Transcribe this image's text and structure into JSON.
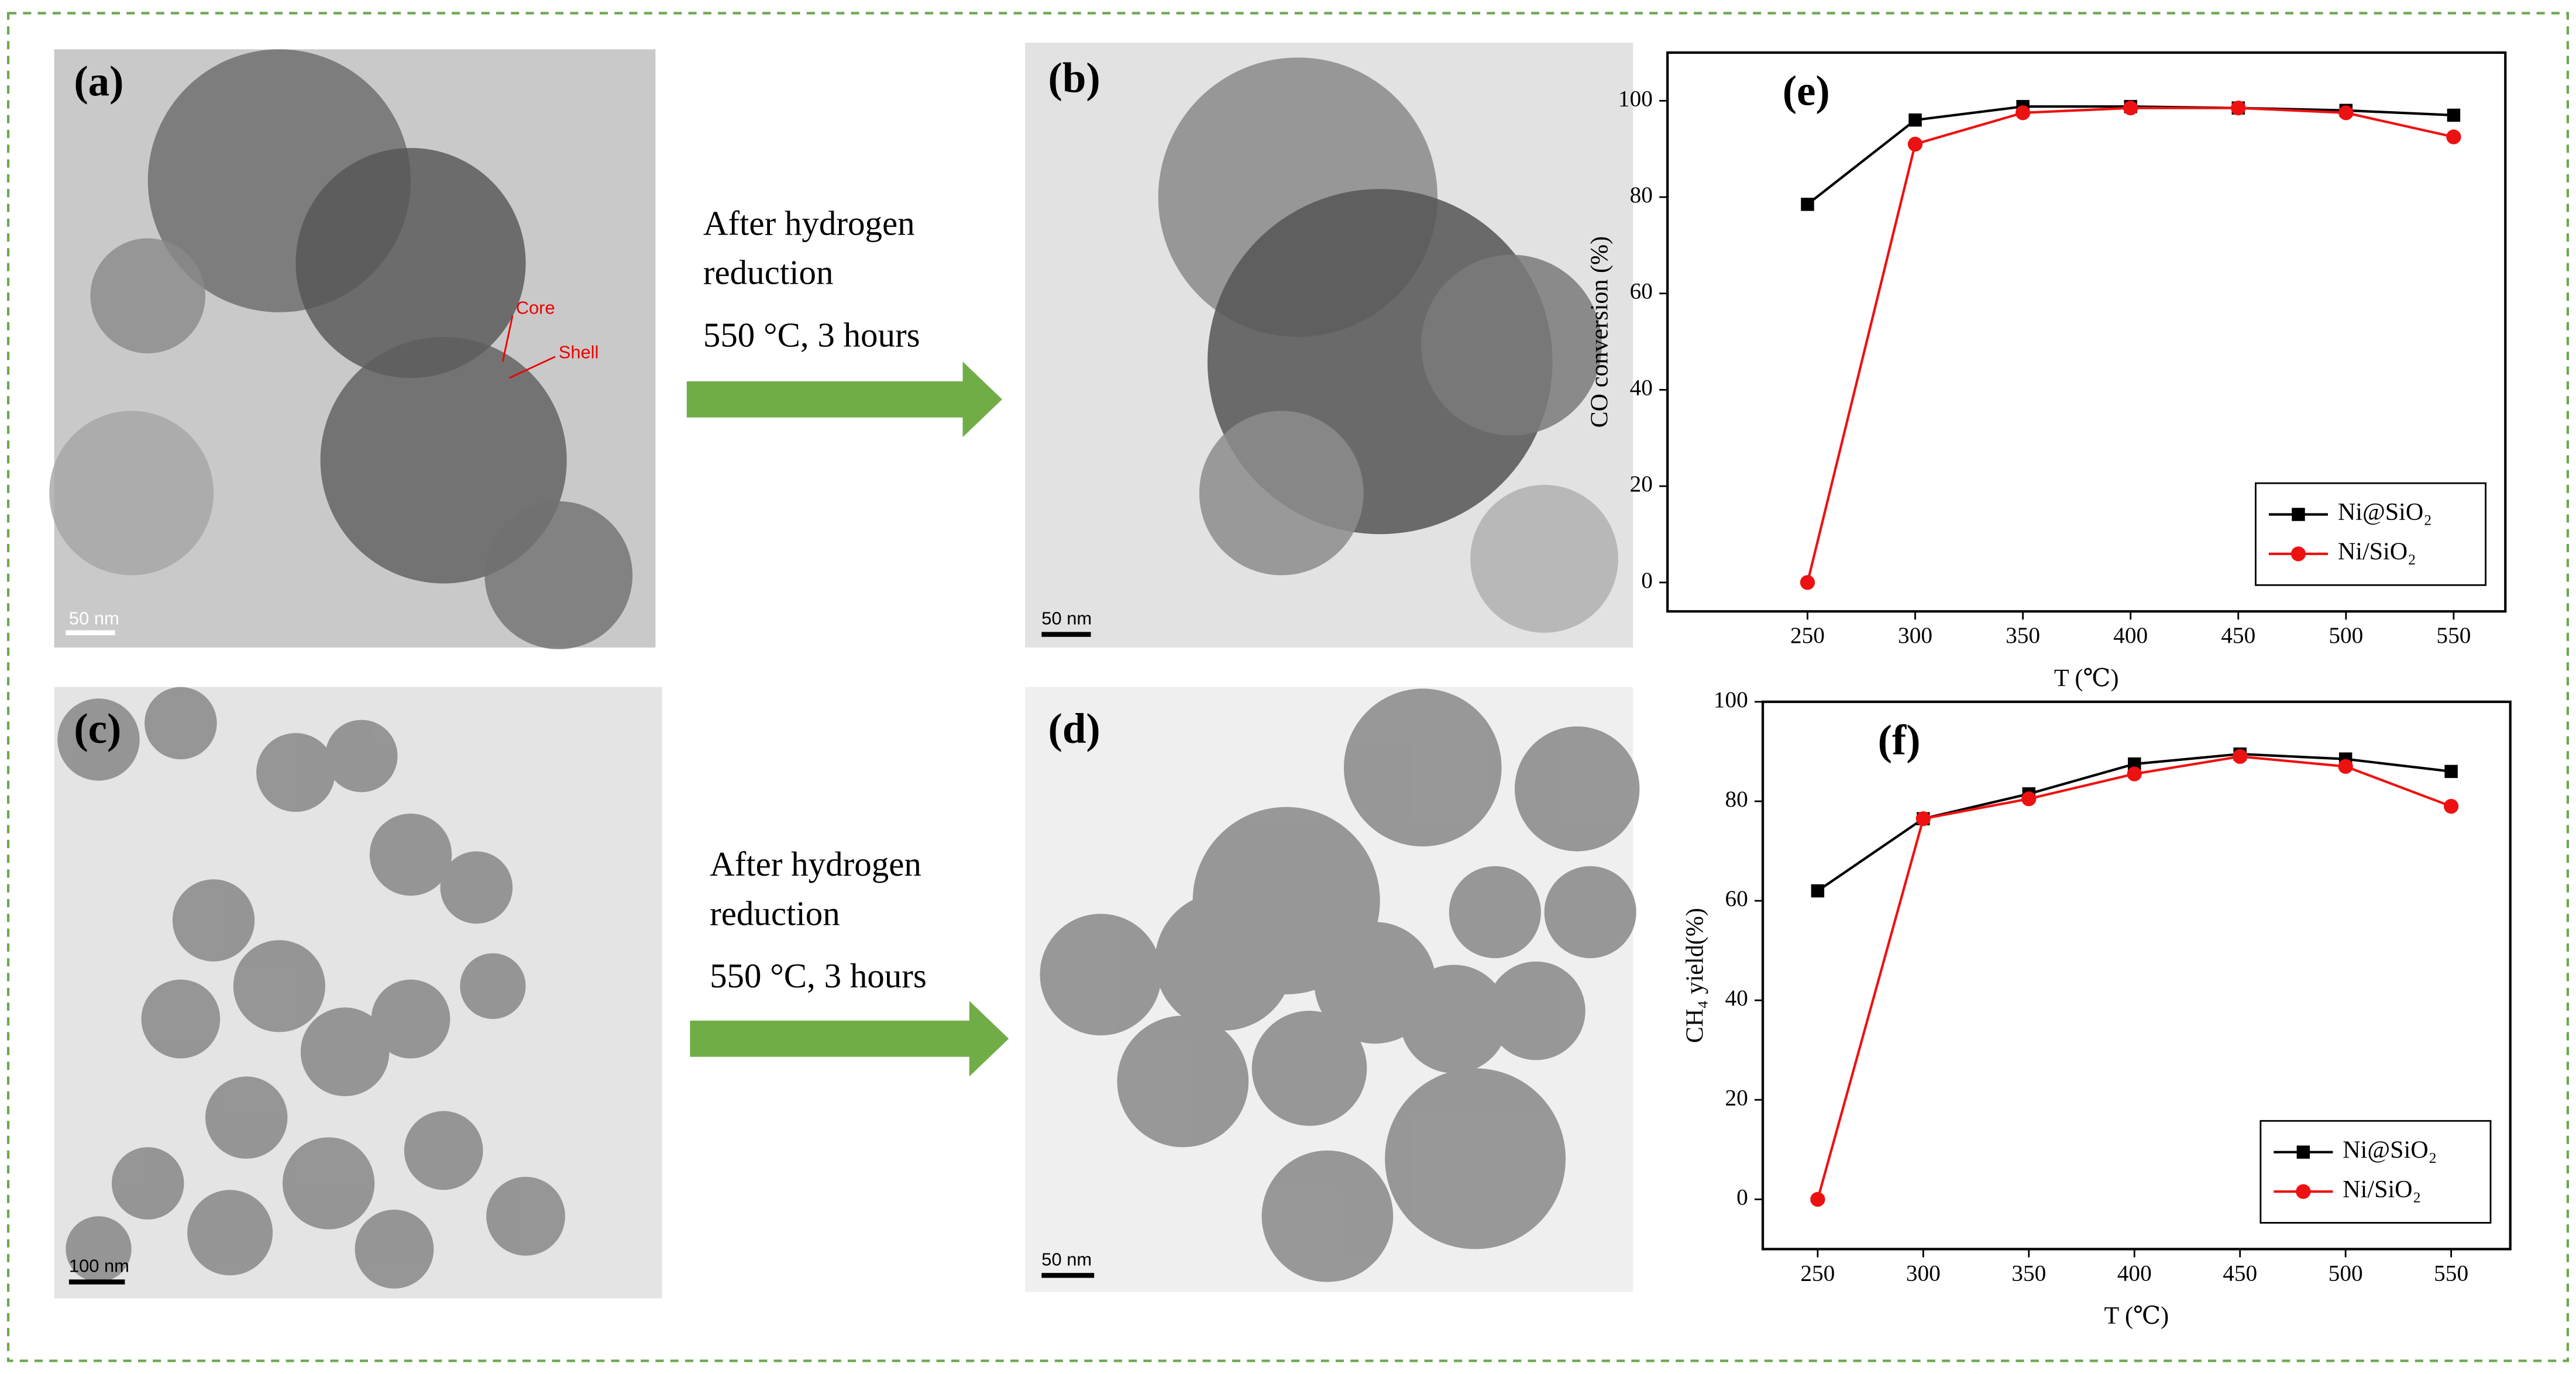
{
  "images": [
    {
      "label": "(a)",
      "scale": "50 nm",
      "annotations": [
        "Core",
        "Shell"
      ]
    },
    {
      "label": "(b)",
      "scale": "50 nm"
    },
    {
      "label": "(c)",
      "scale": "100 nm"
    },
    {
      "label": "(d)",
      "scale": "50 nm"
    }
  ],
  "arrows": [
    {
      "lines": [
        "After hydrogen",
        "reduction",
        "550 °C, 3 hours"
      ]
    },
    {
      "lines": [
        "After hydrogen",
        "reduction",
        "550 °C, 3 hours"
      ]
    }
  ],
  "chart_data": [
    {
      "type": "line",
      "panel_label": "(e)",
      "x_label": "T (℃)",
      "y_label": "CO conversion (%)",
      "x": [
        250,
        300,
        350,
        400,
        450,
        500,
        550
      ],
      "xlim": [
        185,
        574
      ],
      "xticks": [
        250,
        300,
        350,
        400,
        450,
        500,
        550
      ],
      "ylim": [
        -6,
        110
      ],
      "yticks": [
        0,
        20,
        40,
        60,
        80,
        100
      ],
      "legend": "lower right",
      "series": [
        {
          "name": "Ni@SiO₂",
          "color": "#000000",
          "marker": "square",
          "values": [
            78.5,
            96,
            98.8,
            98.8,
            98.5,
            98,
            97
          ]
        },
        {
          "name": "Ni/SiO₂",
          "color": "#ee1111",
          "marker": "circle",
          "values": [
            0,
            91,
            97.5,
            98.5,
            98.5,
            97.5,
            92.5
          ]
        }
      ]
    },
    {
      "type": "line",
      "panel_label": "(f)",
      "x_label": "T (℃)",
      "y_label": "CH₄ yield(%)",
      "x": [
        250,
        300,
        350,
        400,
        450,
        500,
        550
      ],
      "xlim": [
        224,
        578
      ],
      "xticks": [
        250,
        300,
        350,
        400,
        450,
        500,
        550
      ],
      "ylim": [
        -10,
        100
      ],
      "yticks": [
        0,
        20,
        40,
        60,
        80,
        100
      ],
      "legend": "lower right",
      "series": [
        {
          "name": "Ni@SiO₂",
          "color": "#000000",
          "marker": "square",
          "values": [
            62,
            76.5,
            81.5,
            87.5,
            89.5,
            88.5,
            86
          ]
        },
        {
          "name": "Ni/SiO₂",
          "color": "#ee1111",
          "marker": "circle",
          "values": [
            0,
            76.5,
            80.5,
            85.5,
            89,
            87,
            79
          ]
        }
      ]
    }
  ]
}
